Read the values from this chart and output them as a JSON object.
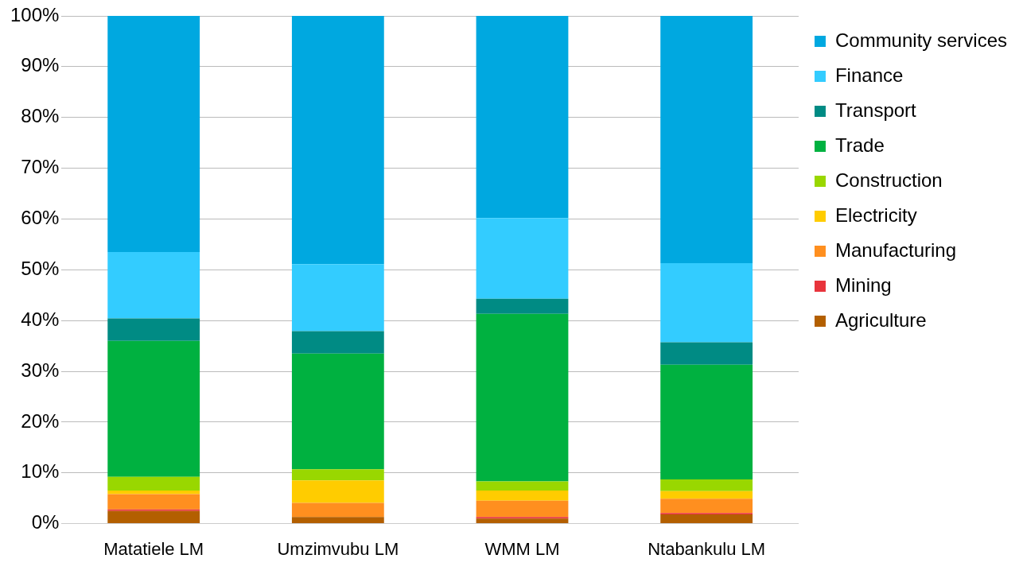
{
  "chart_data": {
    "type": "bar",
    "stacked": true,
    "categories": [
      "Matatiele LM",
      "Umzimvubu LM",
      "WMM LM",
      "Ntabankulu LM"
    ],
    "series": [
      {
        "name": "Agriculture",
        "color": "#b35f00",
        "values": [
          2.5,
          1.3,
          1.0,
          1.8
        ]
      },
      {
        "name": "Mining",
        "color": "#e8343c",
        "values": [
          0.3,
          0,
          0.3,
          0.3
        ]
      },
      {
        "name": "Manufacturing",
        "color": "#ff8f1f",
        "values": [
          3.0,
          2.8,
          3.2,
          2.8
        ]
      },
      {
        "name": "Electricity",
        "color": "#ffcc00",
        "values": [
          0.7,
          4.4,
          2.0,
          1.5
        ]
      },
      {
        "name": "Construction",
        "color": "#99d700",
        "values": [
          2.7,
          2.2,
          1.8,
          2.3
        ]
      },
      {
        "name": "Trade",
        "color": "#00b140",
        "values": [
          26.8,
          22.8,
          33.0,
          22.6
        ]
      },
      {
        "name": "Transport",
        "color": "#008b84",
        "values": [
          4.4,
          4.4,
          3.0,
          4.4
        ]
      },
      {
        "name": "Finance",
        "color": "#33ccff",
        "values": [
          13.1,
          13.2,
          15.9,
          15.6
        ]
      },
      {
        "name": "Community services",
        "color": "#00a8e0",
        "values": [
          46.5,
          48.9,
          39.8,
          48.7
        ]
      }
    ],
    "ylim": [
      0,
      100
    ],
    "yticks": [
      {
        "value": 0,
        "label": "0%"
      },
      {
        "value": 10,
        "label": "10%"
      },
      {
        "value": 20,
        "label": "20%"
      },
      {
        "value": 30,
        "label": "30%"
      },
      {
        "value": 40,
        "label": "40%"
      },
      {
        "value": 50,
        "label": "50%"
      },
      {
        "value": 60,
        "label": "60%"
      },
      {
        "value": 70,
        "label": "70%"
      },
      {
        "value": 80,
        "label": "80%"
      },
      {
        "value": 90,
        "label": "90%"
      },
      {
        "value": 100,
        "label": "100%"
      }
    ],
    "grid": "y",
    "legend": "right"
  }
}
